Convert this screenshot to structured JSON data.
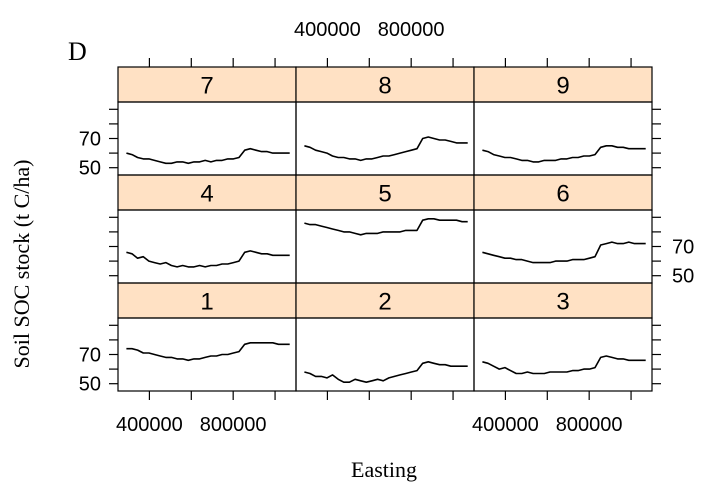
{
  "panel_letter": "D",
  "chart_data": {
    "type": "line",
    "xlabel": "Easting",
    "ylabel": "Soil  SOC stock (t C/ha)",
    "xlim": [
      250000,
      1100000
    ],
    "ylim": [
      45,
      95
    ],
    "xticks": [
      200000,
      400000,
      600000,
      800000,
      1000000
    ],
    "xtick_labels": [
      "400000",
      "800000"
    ],
    "xtick_label_values": [
      400000,
      800000
    ],
    "yticks": [
      50,
      60,
      70,
      80,
      90
    ],
    "ytick_labels": [
      "50",
      "70"
    ],
    "ytick_label_values": [
      50,
      70
    ],
    "strip_color": "#ffe1c4",
    "panels": [
      {
        "label": "1",
        "values": [
          74,
          74,
          73,
          71,
          71,
          70,
          69,
          68,
          68,
          67,
          67,
          66,
          67,
          67,
          68,
          69,
          69,
          70,
          70,
          71,
          72,
          77,
          78,
          78,
          78,
          78,
          78,
          77,
          77,
          77
        ]
      },
      {
        "label": "2",
        "values": [
          58,
          57,
          55,
          55,
          54,
          56,
          53,
          51,
          51,
          53,
          52,
          51,
          52,
          53,
          52,
          54,
          55,
          56,
          57,
          58,
          59,
          64,
          65,
          64,
          63,
          63,
          62,
          62,
          62,
          62
        ]
      },
      {
        "label": "3",
        "values": [
          65,
          64,
          62,
          60,
          61,
          59,
          57,
          57,
          58,
          57,
          57,
          57,
          58,
          58,
          58,
          58,
          59,
          59,
          60,
          60,
          61,
          68,
          69,
          68,
          67,
          67,
          66,
          66,
          66,
          66
        ]
      },
      {
        "label": "4",
        "values": [
          66,
          65,
          62,
          63,
          60,
          59,
          58,
          59,
          57,
          56,
          57,
          56,
          56,
          57,
          56,
          57,
          57,
          58,
          58,
          59,
          60,
          66,
          67,
          66,
          65,
          65,
          64,
          64,
          64,
          64
        ]
      },
      {
        "label": "5",
        "values": [
          86,
          85,
          85,
          84,
          83,
          82,
          81,
          80,
          80,
          79,
          78,
          79,
          79,
          79,
          80,
          80,
          80,
          80,
          81,
          81,
          81,
          88,
          89,
          89,
          88,
          88,
          88,
          88,
          87,
          87
        ]
      },
      {
        "label": "6",
        "values": [
          66,
          65,
          64,
          63,
          62,
          62,
          61,
          61,
          60,
          59,
          59,
          59,
          59,
          60,
          60,
          60,
          61,
          61,
          61,
          62,
          63,
          71,
          72,
          73,
          72,
          72,
          73,
          72,
          72,
          72
        ]
      },
      {
        "label": "7",
        "values": [
          60,
          59,
          57,
          56,
          56,
          55,
          54,
          53,
          53,
          54,
          54,
          53,
          54,
          54,
          55,
          54,
          55,
          55,
          56,
          56,
          57,
          62,
          63,
          62,
          61,
          61,
          60,
          60,
          60,
          60
        ]
      },
      {
        "label": "8",
        "values": [
          65,
          64,
          62,
          61,
          60,
          58,
          57,
          57,
          56,
          56,
          55,
          56,
          56,
          57,
          58,
          58,
          59,
          60,
          61,
          62,
          63,
          70,
          71,
          70,
          69,
          69,
          68,
          67,
          67,
          67
        ]
      },
      {
        "label": "9",
        "values": [
          62,
          61,
          59,
          58,
          57,
          57,
          56,
          55,
          55,
          54,
          54,
          55,
          55,
          55,
          56,
          56,
          57,
          57,
          58,
          58,
          59,
          64,
          65,
          65,
          64,
          64,
          63,
          63,
          63,
          63
        ]
      }
    ],
    "x_start": 290000,
    "x_end": 1070000
  }
}
